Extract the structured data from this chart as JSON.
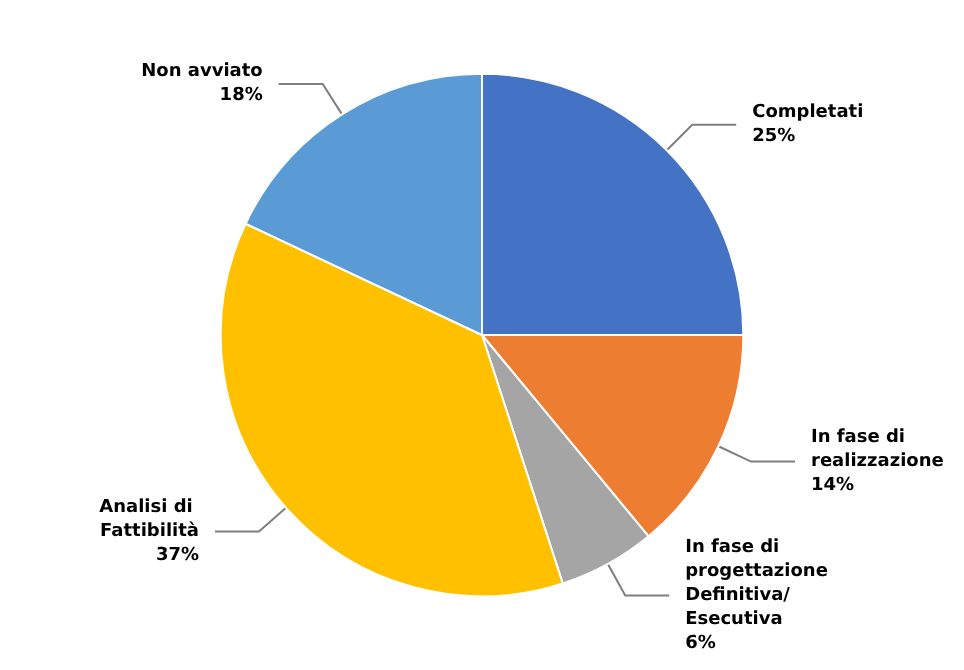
{
  "chart_data": {
    "type": "pie",
    "categories": [
      "Completati",
      "In fase di realizzazione",
      "In fase di progettazione Definitiva/ Esecutiva",
      "Analisi di Fattibilità",
      "Non avviato"
    ],
    "values": [
      25,
      14,
      6,
      37,
      18
    ],
    "value_labels": [
      "25%",
      "14%",
      "6%",
      "37%",
      "18%"
    ],
    "colors": [
      "#4472c4",
      "#ed7d31",
      "#a5a5a5",
      "#ffc000",
      "#5b9bd5"
    ],
    "legend": false
  }
}
